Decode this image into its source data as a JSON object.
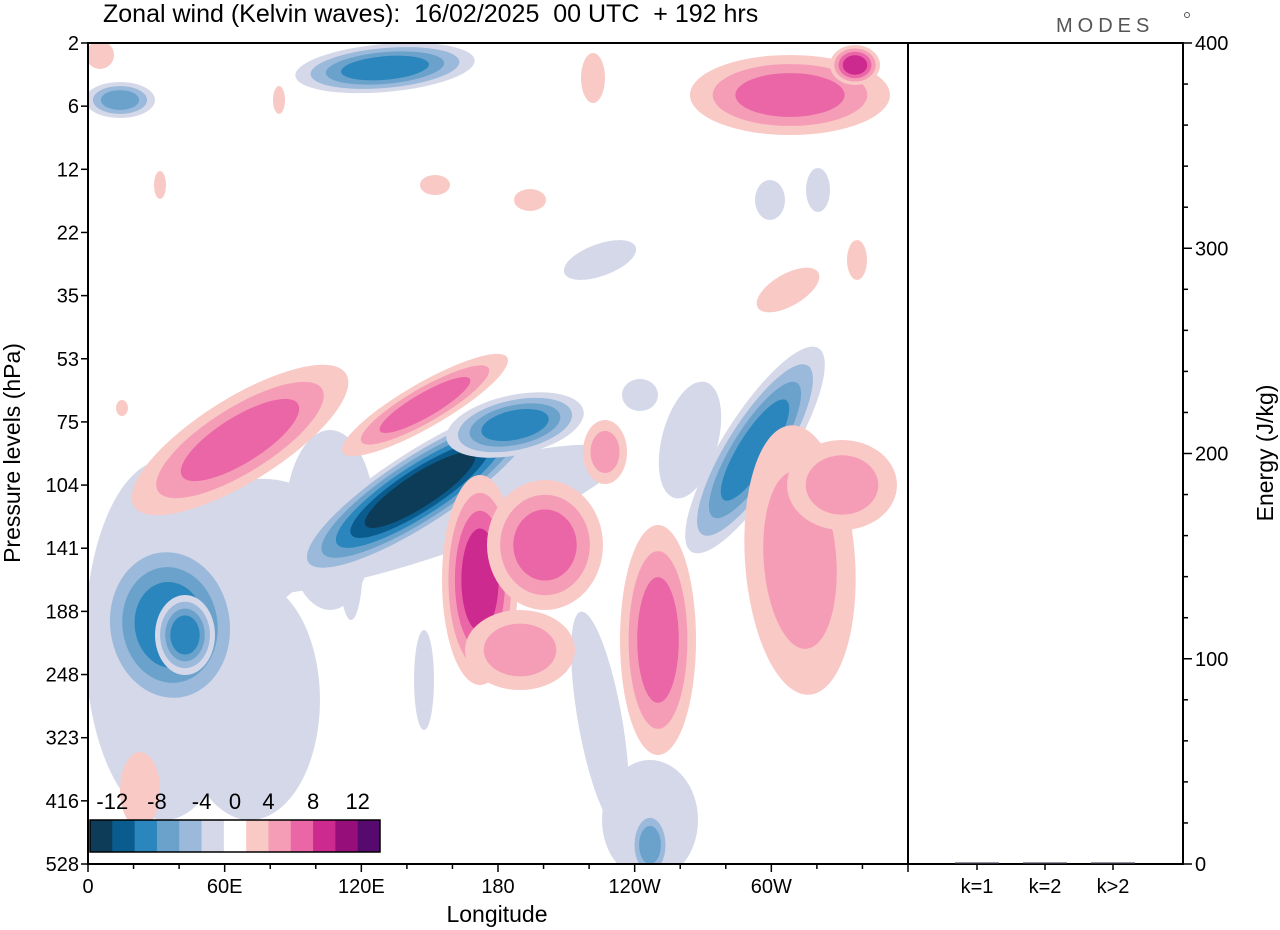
{
  "chart_data": {
    "title": "Zonal wind (Kelvin waves):  16/02/2025  00 UTC  + 192 hrs",
    "brand": "MODES",
    "panels": [
      {
        "type": "heatmap",
        "xlabel": "Longitude",
        "ylabel": "Pressure levels (hPa)",
        "x_ticks": [
          {
            "label": "0",
            "lon": 0
          },
          {
            "label": "60E",
            "lon": 60
          },
          {
            "label": "120E",
            "lon": 120
          },
          {
            "label": "180",
            "lon": 180
          },
          {
            "label": "120W",
            "lon": 240
          },
          {
            "label": "60W",
            "lon": 300
          }
        ],
        "xlim": [
          0,
          360
        ],
        "y_levels": [
          2,
          6,
          12,
          22,
          35,
          53,
          75,
          104,
          141,
          188,
          248,
          323,
          416,
          528
        ],
        "colorbar": {
          "labels": [
            "-12",
            "-8",
            "-4",
            "0",
            "4",
            "8",
            "12"
          ],
          "levels": [
            -14,
            -12,
            -10,
            -8,
            -6,
            -4,
            -2,
            2,
            4,
            6,
            8,
            10,
            12,
            14
          ],
          "colors": [
            "#0c3c58",
            "#0b5c8e",
            "#2a86bd",
            "#6aa2cc",
            "#9bb9da",
            "#d4d8e9",
            "#ffffff",
            "#f9c9c6",
            "#f59db7",
            "#ea66a6",
            "#cc2a8f",
            "#960e79",
            "#560a6e"
          ]
        },
        "features": [
          {
            "sign": "negative",
            "peak": -11,
            "lon": 140,
            "level": 104
          },
          {
            "sign": "negative",
            "peak": -8,
            "lon": 41,
            "level": 188
          },
          {
            "sign": "negative",
            "peak": -8,
            "lon": 297,
            "level": 104
          },
          {
            "sign": "negative",
            "peak": -7,
            "lon": 140,
            "level": 2
          },
          {
            "sign": "positive",
            "peak": 9,
            "lon": 174,
            "level": 188
          },
          {
            "sign": "positive",
            "peak": 8,
            "lon": 337,
            "level": 2
          },
          {
            "sign": "positive",
            "peak": 6,
            "lon": 215,
            "level": 141
          },
          {
            "sign": "positive",
            "peak": 6,
            "lon": 70,
            "level": 75
          },
          {
            "sign": "positive",
            "peak": 5,
            "lon": 325,
            "level": 104
          }
        ]
      },
      {
        "type": "bar",
        "ylabel": "Energy (J/kg)",
        "categories": [
          "k=1",
          "k=2",
          "k>2"
        ],
        "values": [
          0.5,
          0.3,
          0.6
        ],
        "ylim": [
          0,
          400
        ],
        "y_ticks": [
          0,
          100,
          200,
          300,
          400
        ]
      }
    ]
  }
}
